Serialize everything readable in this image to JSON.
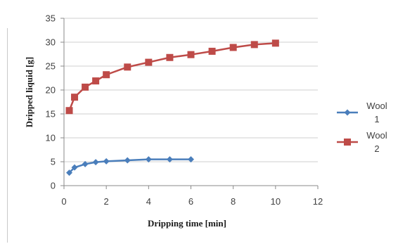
{
  "chart_data": {
    "type": "line",
    "title": "",
    "xlabel": "Dripping time [min]",
    "ylabel": "Dripped liquid [g]",
    "xlim": [
      0,
      12
    ],
    "ylim": [
      0,
      35
    ],
    "xticks": [
      0,
      2,
      4,
      6,
      8,
      10,
      12
    ],
    "yticks": [
      0,
      5,
      10,
      15,
      20,
      25,
      30,
      35
    ],
    "grid": "horizontal",
    "legend": "right",
    "series": [
      {
        "name": "Wool 1",
        "name_lines": [
          "Wool",
          "1"
        ],
        "color": "#4a7ebb",
        "marker": "diamond",
        "x": [
          0.25,
          0.5,
          1,
          1.5,
          2,
          3,
          4,
          5,
          6
        ],
        "y": [
          2.7,
          3.8,
          4.5,
          4.9,
          5.1,
          5.3,
          5.5,
          5.5,
          5.5
        ]
      },
      {
        "name": "Wool 2",
        "name_lines": [
          "Wool",
          "2"
        ],
        "color": "#be4b48",
        "marker": "square",
        "x": [
          0.25,
          0.5,
          1,
          1.5,
          2,
          3,
          4,
          5,
          6,
          7,
          8,
          9,
          10
        ],
        "y": [
          15.7,
          18.5,
          20.6,
          21.9,
          23.2,
          24.8,
          25.8,
          26.8,
          27.4,
          28.1,
          28.9,
          29.5,
          29.8
        ]
      }
    ]
  }
}
